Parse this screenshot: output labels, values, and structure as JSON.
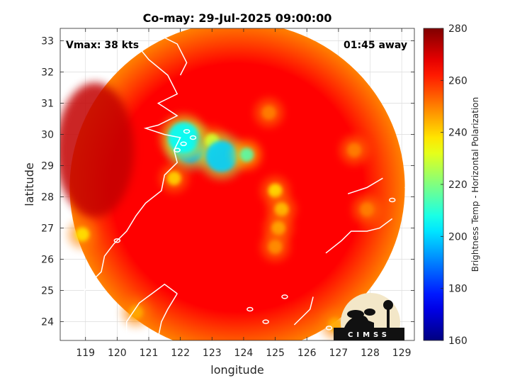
{
  "chart_data": {
    "type": "heatmap",
    "title": "Co-may: 29-Jul-2025 09:00:00",
    "xlabel": "longitude",
    "ylabel": "latitude",
    "xlim": [
      118.2,
      129.4
    ],
    "ylim": [
      23.4,
      33.4
    ],
    "xticks": [
      119,
      120,
      121,
      122,
      123,
      124,
      125,
      126,
      127,
      128,
      129
    ],
    "yticks": [
      24,
      25,
      26,
      27,
      28,
      29,
      30,
      31,
      32,
      33
    ],
    "grid": true,
    "annotations": {
      "vmax": "Vmax: 38 kts",
      "distance": "01:45 away"
    },
    "colorbar": {
      "label": "Brightness Temp - Horizontal Polarization",
      "range": [
        160,
        280
      ],
      "ticks": [
        160,
        180,
        200,
        220,
        240,
        260,
        280
      ],
      "colormap": "jet"
    },
    "swath": {
      "center": [
        123.8,
        28.3
      ],
      "radius_deg": 5.3,
      "background_value": 265,
      "edge_value": 250
    },
    "features": [
      {
        "lon": 122.3,
        "lat": 29.6,
        "value": 195
      },
      {
        "lon": 122.1,
        "lat": 29.9,
        "value": 205
      },
      {
        "lon": 123.0,
        "lat": 29.8,
        "value": 232
      },
      {
        "lon": 123.3,
        "lat": 29.3,
        "value": 200
      },
      {
        "lon": 124.1,
        "lat": 29.35,
        "value": 215
      },
      {
        "lon": 125.0,
        "lat": 28.2,
        "value": 238
      },
      {
        "lon": 125.2,
        "lat": 27.6,
        "value": 242
      },
      {
        "lon": 125.1,
        "lat": 27.0,
        "value": 245
      },
      {
        "lon": 125.0,
        "lat": 26.4,
        "value": 248
      },
      {
        "lon": 121.8,
        "lat": 28.6,
        "value": 240
      },
      {
        "lon": 118.9,
        "lat": 26.8,
        "value": 238
      },
      {
        "lon": 126.9,
        "lat": 23.9,
        "value": 245
      },
      {
        "lon": 127.5,
        "lat": 29.5,
        "value": 250
      },
      {
        "lon": 127.9,
        "lat": 27.6,
        "value": 250
      },
      {
        "lon": 124.8,
        "lat": 30.7,
        "value": 250
      },
      {
        "lon": 120.6,
        "lat": 24.3,
        "value": 245
      }
    ]
  },
  "logo": {
    "text": "CIMSS"
  }
}
